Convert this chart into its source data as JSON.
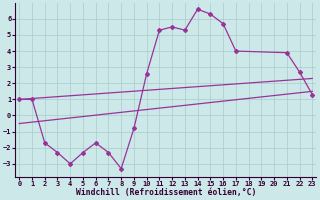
{
  "background_color": "#cce8e8",
  "grid_color": "#aacccc",
  "line_color": "#993399",
  "line_width": 0.9,
  "marker": "D",
  "marker_size": 2.0,
  "xlim": [
    -0.3,
    23.3
  ],
  "ylim": [
    -3.8,
    7.0
  ],
  "yticks": [
    -3,
    -2,
    -1,
    0,
    1,
    2,
    3,
    4,
    5,
    6
  ],
  "xticks": [
    0,
    1,
    2,
    3,
    4,
    5,
    6,
    7,
    8,
    9,
    10,
    11,
    12,
    13,
    14,
    15,
    16,
    17,
    18,
    19,
    20,
    21,
    22,
    23
  ],
  "xlabel": "Windchill (Refroidissement éolien,°C)",
  "xlabel_fontsize": 5.8,
  "tick_fontsize": 5.0,
  "main_curve_x": [
    0,
    1,
    2,
    3,
    4,
    5,
    6,
    7,
    8,
    9,
    10,
    11,
    12,
    13,
    14,
    15,
    16,
    17,
    21,
    22,
    23
  ],
  "main_curve_y": [
    1.0,
    1.0,
    -1.7,
    -2.3,
    -3.0,
    -2.3,
    -1.7,
    -2.3,
    -3.3,
    -0.8,
    2.6,
    5.3,
    5.5,
    5.3,
    6.6,
    6.3,
    5.7,
    4.0,
    3.9,
    2.7,
    1.3
  ],
  "line1_x": [
    0,
    23
  ],
  "line1_y": [
    1.0,
    2.3
  ],
  "line2_x": [
    0,
    23
  ],
  "line2_y": [
    -0.5,
    1.5
  ],
  "xlabel_color": "#330033",
  "tick_color": "#330033",
  "spine_color": "#330033"
}
